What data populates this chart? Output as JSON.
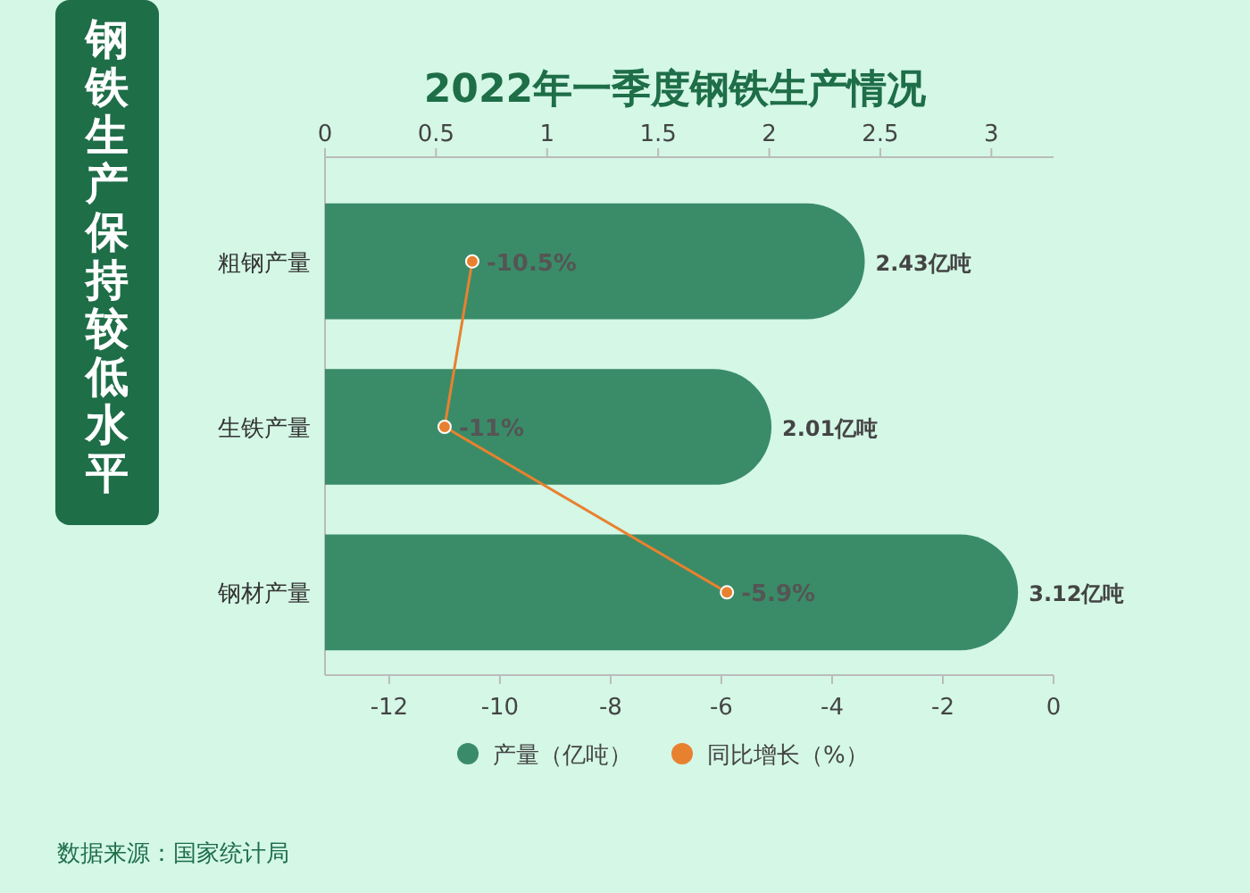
{
  "chart_data": {
    "type": "bar",
    "orientation": "horizontal",
    "title": "2022年一季度钢铁生产情况",
    "subtitle": "钢铁生产保持较低水平",
    "categories": [
      "粗钢产量",
      "生铁产量",
      "钢材产量"
    ],
    "series": [
      {
        "name": "产量（亿吨）",
        "axis": "x2",
        "color": "#3a8c68",
        "values": [
          2.43,
          2.01,
          3.12
        ],
        "value_labels": [
          "2.43亿吨",
          "2.01亿吨",
          "3.12亿吨"
        ]
      },
      {
        "name": "同比增长（%）",
        "type": "line",
        "color": "#e8812f",
        "marker": "circle",
        "values": [
          -10.5,
          -11,
          -5.9
        ],
        "value_labels": [
          "-10.5%",
          "-11%",
          "-5.9%"
        ]
      }
    ],
    "x2lim": [
      0,
      3.28
    ],
    "x2ticks": [
      0,
      0.5,
      1,
      1.5,
      2,
      2.5,
      3
    ],
    "xlim": [
      -13.16,
      0
    ],
    "xticks": [
      -12,
      -10,
      -8,
      -6,
      -4,
      -2,
      0
    ],
    "legend": "bottom",
    "annotations": [
      "数据来源：国家统计局"
    ]
  }
}
